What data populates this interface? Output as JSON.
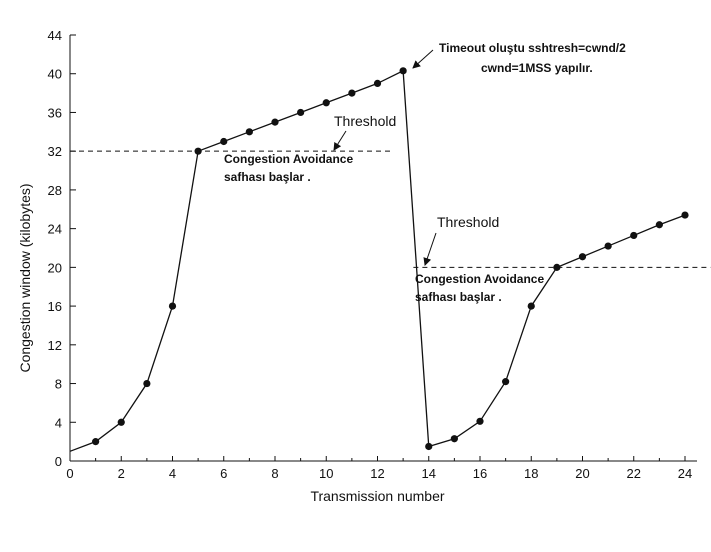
{
  "chart_data": {
    "type": "line",
    "xlabel": "Transmission number",
    "ylabel": "Congestion window (kilobytes)",
    "xlim": [
      0,
      24
    ],
    "ylim": [
      0,
      44
    ],
    "xticks": [
      0,
      2,
      4,
      6,
      8,
      10,
      12,
      14,
      16,
      18,
      20,
      22,
      24
    ],
    "yticks": [
      0,
      4,
      8,
      12,
      16,
      20,
      24,
      28,
      32,
      36,
      40,
      44
    ],
    "grid": false,
    "series": [
      {
        "line_start": [
          0,
          1
        ],
        "points": [
          [
            1,
            2
          ],
          [
            2,
            4
          ],
          [
            3,
            8
          ],
          [
            4,
            16
          ],
          [
            5,
            32
          ],
          [
            6,
            33
          ],
          [
            7,
            34
          ],
          [
            8,
            35
          ],
          [
            9,
            36
          ],
          [
            10,
            37
          ],
          [
            11,
            38
          ],
          [
            12,
            39
          ],
          [
            13,
            40.3
          ],
          [
            14,
            1.5
          ],
          [
            15,
            2.3
          ],
          [
            16,
            4.1
          ],
          [
            17,
            8.2
          ],
          [
            18,
            16
          ],
          [
            19,
            20
          ],
          [
            20,
            21.1
          ],
          [
            21,
            22.2
          ],
          [
            22,
            23.3
          ],
          [
            23,
            24.4
          ],
          [
            24,
            25.4
          ]
        ]
      }
    ],
    "thresholds": [
      {
        "label": "Threshold",
        "y": 32,
        "x_from": 0,
        "x_to": 12.6
      },
      {
        "label": "Threshold",
        "y": 20,
        "x_from": 13.4,
        "x_to": 25
      }
    ],
    "annotations": {
      "timeout_line1": "Timeout  oluştu sshtresh=cwnd/2",
      "timeout_line2": "cwnd=1MSS yapılır.",
      "ca1_line1": "Congestion Avoidance",
      "ca1_line2": "safhası başlar .",
      "ca2_line1": "Congestion Avoidance",
      "ca2_line2": "safhası başlar ."
    }
  }
}
